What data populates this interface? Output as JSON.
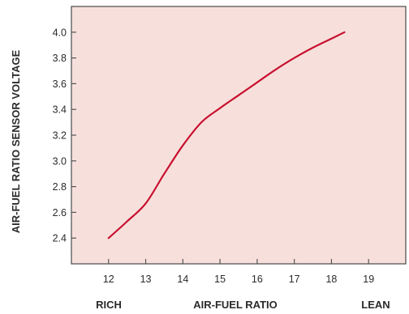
{
  "chart_data": {
    "type": "line",
    "title": "",
    "xlabel": "AIR-FUEL RATIO",
    "ylabel": "AIR-FUEL RATIO SENSOR VOLTAGE",
    "x_end_labels": {
      "left": "RICH",
      "right": "LEAN"
    },
    "xlim": [
      11,
      20
    ],
    "ylim": [
      2.2,
      4.2
    ],
    "x_ticks": [
      12,
      13,
      14,
      15,
      16,
      17,
      18,
      19
    ],
    "y_ticks": [
      2.4,
      2.6,
      2.8,
      3.0,
      3.2,
      3.4,
      3.6,
      3.8,
      4.0
    ],
    "x_tick_labels": [
      "12",
      "13",
      "14",
      "15",
      "16",
      "17",
      "18",
      "19"
    ],
    "y_tick_labels": [
      "2.4",
      "2.6",
      "2.8",
      "3.0",
      "3.2",
      "3.4",
      "3.6",
      "3.8",
      "4.0"
    ],
    "grid": false,
    "series": [
      {
        "x": [
          12,
          12.5,
          13,
          13.5,
          14,
          14.5,
          15,
          15.5,
          16,
          16.5,
          17,
          17.5,
          18,
          18.35
        ],
        "y": [
          2.4,
          2.53,
          2.67,
          2.9,
          3.12,
          3.3,
          3.41,
          3.51,
          3.61,
          3.71,
          3.8,
          3.88,
          3.95,
          4.0
        ]
      }
    ],
    "colors": {
      "background": "#f7e0dc",
      "line": "#c8102e",
      "axis": "#555555"
    }
  }
}
